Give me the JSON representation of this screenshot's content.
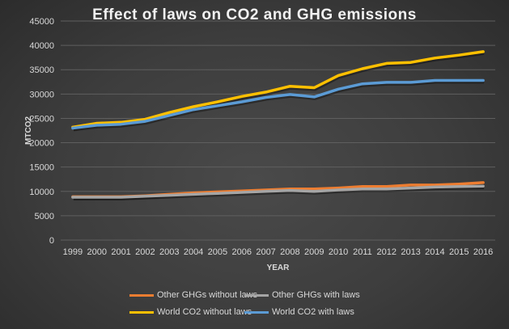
{
  "chart_data": {
    "type": "line",
    "title": "Effect of laws on CO2 and GHG emissions",
    "xlabel": "YEAR",
    "ylabel": "MTCO2",
    "ylim": [
      0,
      45000
    ],
    "yticks": [
      0,
      5000,
      10000,
      15000,
      20000,
      25000,
      30000,
      35000,
      40000,
      45000
    ],
    "grid": true,
    "legend_position": "bottom",
    "categories": [
      "1999",
      "2000",
      "2001",
      "2002",
      "2003",
      "2004",
      "2005",
      "2006",
      "2007",
      "2008",
      "2009",
      "2010",
      "2011",
      "2012",
      "2013",
      "2014",
      "2015",
      "2016"
    ],
    "series": [
      {
        "name": "Other GHGs without laws",
        "color": "#ed7d31",
        "values": [
          8900,
          8900,
          8900,
          9100,
          9400,
          9700,
          9900,
          10100,
          10300,
          10500,
          10500,
          10700,
          11000,
          11000,
          11300,
          11300,
          11500,
          11800
        ]
      },
      {
        "name": "Other GHGs with laws",
        "color": "#a5a5a5",
        "values": [
          8800,
          8800,
          8800,
          9000,
          9200,
          9400,
          9600,
          9800,
          10000,
          10200,
          10000,
          10300,
          10500,
          10500,
          10700,
          10900,
          11000,
          11100
        ]
      },
      {
        "name": "World CO2 without laws",
        "color": "#ffc000",
        "values": [
          23200,
          24000,
          24200,
          24800,
          26200,
          27400,
          28400,
          29500,
          30400,
          31600,
          31300,
          33800,
          35200,
          36300,
          36500,
          37400,
          38000,
          38700
        ]
      },
      {
        "name": "World CO2 with laws",
        "color": "#5b9bd5",
        "values": [
          23000,
          23600,
          23800,
          24400,
          25600,
          26800,
          27600,
          28400,
          29300,
          29900,
          29400,
          31000,
          32100,
          32400,
          32400,
          32800,
          32800,
          32800
        ]
      }
    ]
  }
}
